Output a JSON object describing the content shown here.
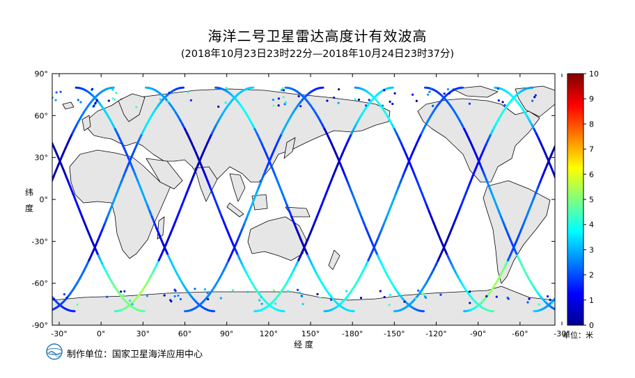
{
  "title": "海洋二号卫星雷达高度计有效波高",
  "subtitle": "(2018年10月23日23时22分—2018年10月24日23时37分)",
  "map": {
    "lon_ticks": [
      "-30°",
      "0°",
      "30°",
      "60°",
      "90°",
      "120°",
      "150°",
      "-180°",
      "-150°",
      "-120°",
      "-90°",
      "-60°",
      "-30°"
    ],
    "lat_ticks": [
      "90°",
      "60°",
      "30°",
      "0°",
      "-30°",
      "-60°",
      "-90°"
    ],
    "lat_label_chars": [
      "纬",
      "度"
    ],
    "lon_label": "经 度",
    "lon_range": [
      -35,
      325
    ],
    "lat_range": [
      -90,
      90
    ]
  },
  "colorbar": {
    "ticks": [
      "10",
      "9",
      "8",
      "7",
      "6",
      "5",
      "4",
      "3",
      "2",
      "1",
      "0"
    ],
    "min": 0,
    "max": 10,
    "unit": "单位：米"
  },
  "producer": "制作单位：国家卫星海洋应用中心",
  "colors": {
    "land": "#e6e6e6",
    "coast": "#000000",
    "ocean": "#ffffff"
  }
}
